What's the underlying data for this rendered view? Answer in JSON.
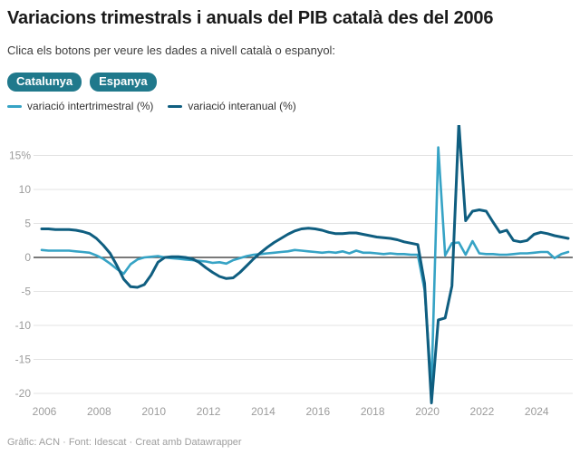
{
  "header": {
    "title": "Variacions trimestrals i anuals del PIB català des del 2006",
    "subtitle": "Clica els botons per veure les dades a nivell català o espanyol:"
  },
  "buttons": [
    {
      "label": "Catalunya",
      "color": "#20798c"
    },
    {
      "label": "Espanya",
      "color": "#20798c"
    }
  ],
  "legend": [
    {
      "label": "variació intertrimestral (%)",
      "color": "#36a3c5"
    },
    {
      "label": "variació interanual (%)",
      "color": "#0f5e80"
    }
  ],
  "footer": {
    "text": "Gràfic: ACN · Font: Idescat · Creat amb Datawrapper"
  },
  "colors": {
    "grid": "#e3e3e3",
    "zero_line": "#4d4d4d",
    "tick_label": "#9c9c9c"
  },
  "chart_data": {
    "type": "line",
    "title": "Variacions trimestrals i anuals del PIB català des del 2006",
    "x_unit": "quarter",
    "grid": true,
    "legend_position": "top",
    "xlim": [
      2006,
      2025.25
    ],
    "ylim": [
      -22.5,
      20.5
    ],
    "x_ticks": [
      2006,
      2008,
      2010,
      2012,
      2014,
      2016,
      2018,
      2020,
      2022,
      2024
    ],
    "y_ticks": [
      "15%",
      "10",
      "5",
      "0",
      "-5",
      "-10",
      "-15",
      "-20"
    ],
    "y_tick_values": [
      15,
      10,
      5,
      0,
      -5,
      -10,
      -15,
      -20
    ],
    "quarters": [
      "2006 T1",
      "2006 T2",
      "2006 T3",
      "2006 T4",
      "2007 T1",
      "2007 T2",
      "2007 T3",
      "2007 T4",
      "2008 T1",
      "2008 T2",
      "2008 T3",
      "2008 T4",
      "2009 T1",
      "2009 T2",
      "2009 T3",
      "2009 T4",
      "2010 T1",
      "2010 T2",
      "2010 T3",
      "2010 T4",
      "2011 T1",
      "2011 T2",
      "2011 T3",
      "2011 T4",
      "2012 T1",
      "2012 T2",
      "2012 T3",
      "2012 T4",
      "2013 T1",
      "2013 T2",
      "2013 T3",
      "2013 T4",
      "2014 T1",
      "2014 T2",
      "2014 T3",
      "2014 T4",
      "2015 T1",
      "2015 T2",
      "2015 T3",
      "2015 T4",
      "2016 T1",
      "2016 T2",
      "2016 T3",
      "2016 T4",
      "2017 T1",
      "2017 T2",
      "2017 T3",
      "2017 T4",
      "2018 T1",
      "2018 T2",
      "2018 T3",
      "2018 T4",
      "2019 T1",
      "2019 T2",
      "2019 T3",
      "2019 T4",
      "2020 T1",
      "2020 T2",
      "2020 T3",
      "2020 T4",
      "2021 T1",
      "2021 T2",
      "2021 T3",
      "2021 T4",
      "2022 T1",
      "2022 T2",
      "2022 T3",
      "2022 T4",
      "2023 T1",
      "2023 T2",
      "2023 T3",
      "2023 T4",
      "2024 T1",
      "2024 T2",
      "2024 T3",
      "2024 T4",
      "2025 T1",
      "2025 T2"
    ],
    "series": [
      {
        "name": "variació intertrimestral (%)",
        "color": "#36a3c5",
        "values": [
          1.1,
          1.0,
          1.0,
          1.0,
          1.0,
          0.9,
          0.8,
          0.7,
          0.3,
          -0.2,
          -0.9,
          -1.7,
          -2.4,
          -1.0,
          -0.3,
          0.0,
          0.1,
          0.2,
          0.0,
          -0.1,
          -0.2,
          -0.3,
          -0.4,
          -0.5,
          -0.6,
          -0.8,
          -0.7,
          -0.9,
          -0.4,
          -0.1,
          0.2,
          0.4,
          0.5,
          0.6,
          0.7,
          0.8,
          0.9,
          1.1,
          1.0,
          0.9,
          0.8,
          0.7,
          0.8,
          0.7,
          0.9,
          0.6,
          1.0,
          0.7,
          0.7,
          0.6,
          0.5,
          0.6,
          0.5,
          0.5,
          0.4,
          0.4,
          -4.8,
          -19.0,
          16.2,
          0.3,
          2.1,
          2.2,
          0.4,
          2.4,
          0.6,
          0.5,
          0.5,
          0.4,
          0.4,
          0.5,
          0.6,
          0.6,
          0.7,
          0.8,
          0.8,
          -0.1,
          0.5,
          0.8
        ]
      },
      {
        "name": "variació interanual (%)",
        "color": "#0f5e80",
        "values": [
          4.2,
          4.2,
          4.1,
          4.1,
          4.1,
          4.0,
          3.8,
          3.5,
          2.8,
          1.8,
          0.6,
          -1.2,
          -3.2,
          -4.3,
          -4.4,
          -4.0,
          -2.6,
          -0.7,
          0.0,
          0.1,
          0.1,
          0.0,
          -0.2,
          -0.7,
          -1.5,
          -2.2,
          -2.8,
          -3.1,
          -3.0,
          -2.2,
          -1.2,
          -0.2,
          0.7,
          1.5,
          2.2,
          2.8,
          3.4,
          3.9,
          4.2,
          4.3,
          4.2,
          4.0,
          3.7,
          3.5,
          3.5,
          3.6,
          3.6,
          3.4,
          3.2,
          3.0,
          2.9,
          2.8,
          2.6,
          2.3,
          2.1,
          1.9,
          -3.8,
          -21.4,
          -9.2,
          -8.9,
          -4.2,
          19.8,
          5.4,
          6.8,
          7.0,
          6.8,
          5.2,
          3.7,
          4.0,
          2.5,
          2.3,
          2.5,
          3.4,
          3.7,
          3.5,
          3.2,
          3.0,
          2.8
        ]
      }
    ]
  }
}
